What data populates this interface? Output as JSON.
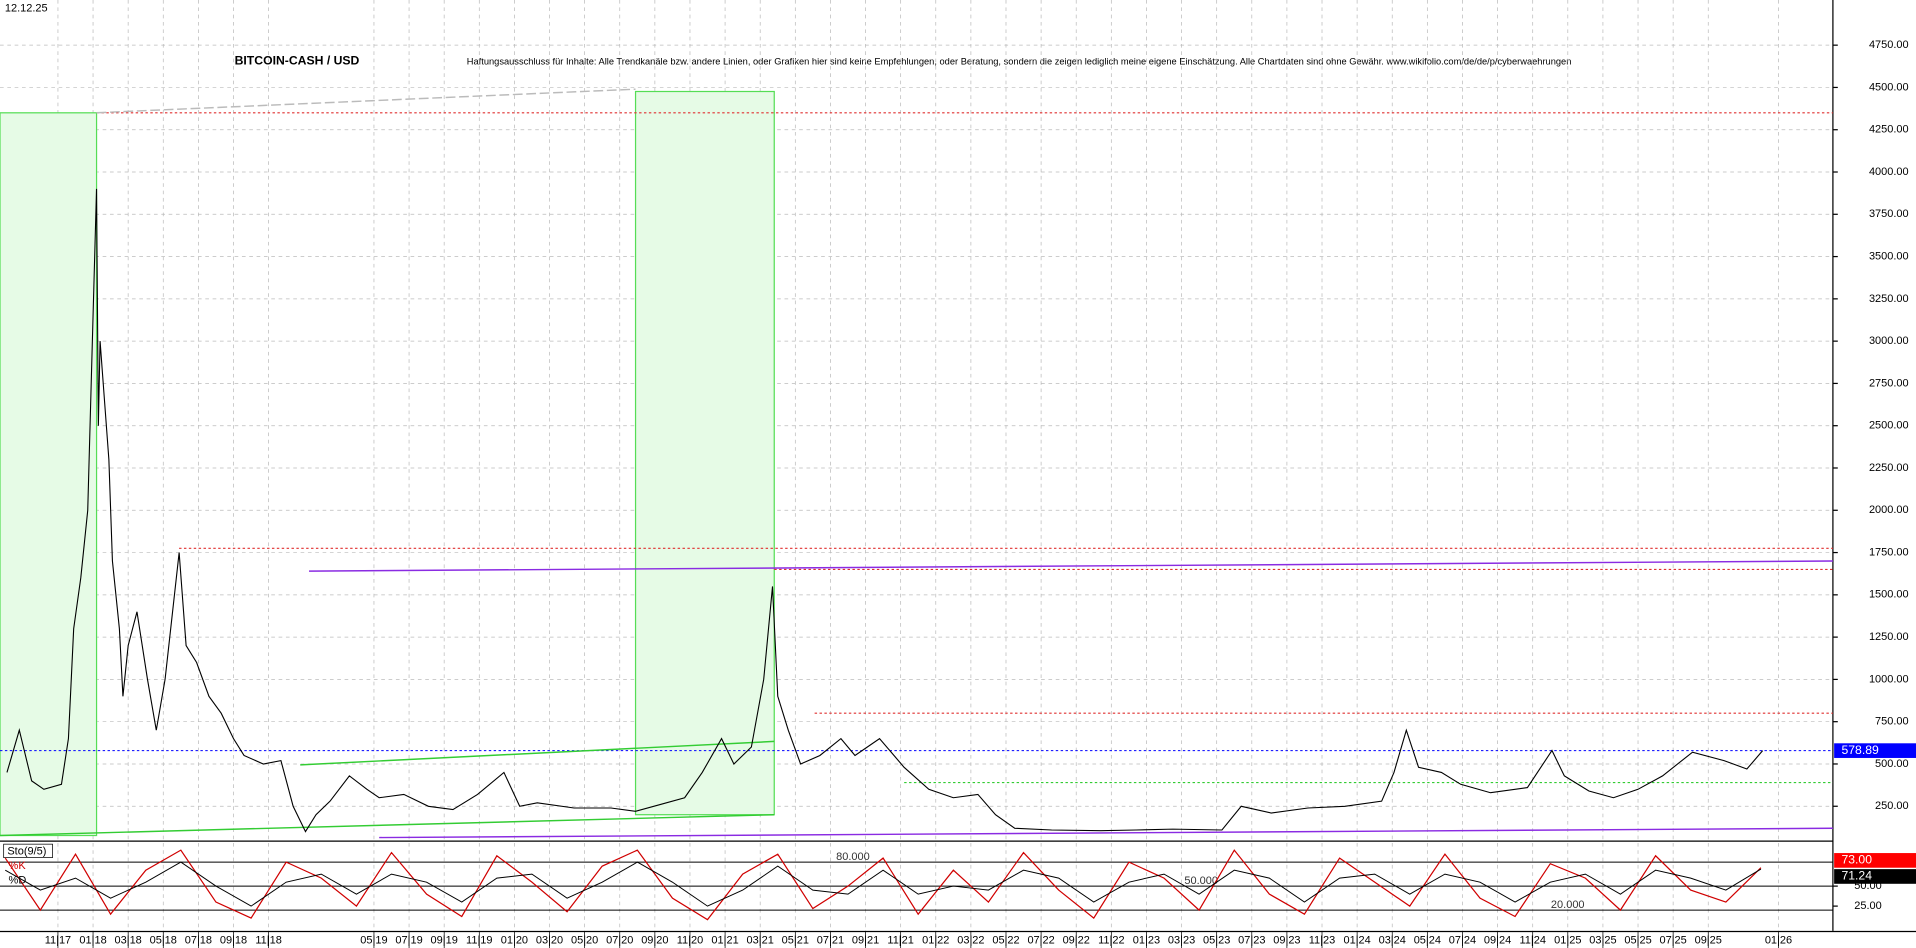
{
  "chart_data": [
    {
      "type": "line",
      "title": "BITCOIN-CASH / USD",
      "date": "12.12.25",
      "subtitle": "Haftungsausschluss für Inhalte: Alle Trendkanäle bzw. andere Linien, oder Grafiken hier sind keine Empfehlungen, oder Beratung, sondern die zeigen lediglich meine eigene Einschätzung. Alle Chartdaten sind ohne Gewähr. www.wikifolio.com/de/de/p/cyberwaehrungen",
      "x": [
        -2.9,
        -2.2,
        -1.5,
        -0.8,
        0.2,
        0.6,
        0.9,
        1.3,
        1.7,
        2.2,
        2.3,
        2.4,
        2.9,
        3.1,
        3.5,
        3.7,
        4.0,
        4.5,
        5.1,
        5.6,
        6.1,
        6.9,
        7.3,
        7.9,
        8.6,
        9.3,
        10.0,
        10.6,
        11.7,
        12.7,
        13.4,
        14.1,
        14.7,
        15.5,
        16.6,
        17.6,
        18.3,
        19.7,
        21.1,
        22.5,
        23.9,
        25.4,
        26.3,
        27.3,
        29.4,
        31.5,
        32.9,
        34.3,
        35.7,
        36.7,
        37.8,
        38.5,
        39.5,
        40.2,
        40.7,
        41.0,
        41.6,
        42.3,
        43.4,
        44.6,
        45.4,
        46.8,
        48.2,
        49.6,
        51.0,
        52.4,
        53.4,
        54.5,
        56.6,
        59.4,
        61.4,
        63.5,
        66.3,
        67.4,
        69.1,
        71.2,
        73.3,
        75.4,
        76.1,
        76.8,
        77.5,
        78.8,
        79.9,
        81.6,
        83.7,
        85.1,
        85.8,
        87.2,
        88.6,
        90.0,
        91.4,
        93.1,
        94.9,
        96.2,
        97.1
      ],
      "values": [
        450,
        700,
        400,
        350,
        380,
        650,
        1300,
        1600,
        2000,
        3900,
        2500,
        3000,
        2300,
        1700,
        1300,
        900,
        1200,
        1400,
        1000,
        700,
        1000,
        1750,
        1200,
        1100,
        900,
        800,
        650,
        550,
        500,
        520,
        250,
        100,
        200,
        280,
        430,
        350,
        300,
        320,
        250,
        230,
        320,
        450,
        250,
        270,
        240,
        240,
        220,
        260,
        300,
        450,
        650,
        500,
        600,
        1000,
        1550,
        900,
        700,
        500,
        550,
        650,
        550,
        650,
        480,
        350,
        300,
        320,
        200,
        120,
        110,
        105,
        110,
        115,
        110,
        250,
        210,
        240,
        250,
        280,
        450,
        700,
        480,
        450,
        380,
        330,
        360,
        580,
        430,
        340,
        300,
        350,
        430,
        570,
        520,
        470,
        578.89
      ],
      "color": "#000000",
      "last_value": 578.89,
      "last_color": "#0000ff",
      "xlim": [
        -3.3,
        101.1
      ],
      "xticks": [
        {
          "value": 0,
          "label": "11|17"
        },
        {
          "value": 2,
          "label": "01|18"
        },
        {
          "value": 4,
          "label": "03|18"
        },
        {
          "value": 6,
          "label": "05|18"
        },
        {
          "value": 8,
          "label": "07|18"
        },
        {
          "value": 10,
          "label": "09|18"
        },
        {
          "value": 12,
          "label": "11|18"
        },
        {
          "value": 18,
          "label": "05|19"
        },
        {
          "value": 20,
          "label": "07|19"
        },
        {
          "value": 22,
          "label": "09|19"
        },
        {
          "value": 24,
          "label": "11|19"
        },
        {
          "value": 26,
          "label": "01|20"
        },
        {
          "value": 28,
          "label": "03|20"
        },
        {
          "value": 30,
          "label": "05|20"
        },
        {
          "value": 32,
          "label": "07|20"
        },
        {
          "value": 34,
          "label": "09|20"
        },
        {
          "value": 36,
          "label": "11|20"
        },
        {
          "value": 38,
          "label": "01|21"
        },
        {
          "value": 40,
          "label": "03|21"
        },
        {
          "value": 42,
          "label": "05|21"
        },
        {
          "value": 44,
          "label": "07|21"
        },
        {
          "value": 46,
          "label": "09|21"
        },
        {
          "value": 48,
          "label": "11|21"
        },
        {
          "value": 50,
          "label": "01|22"
        },
        {
          "value": 52,
          "label": "03|22"
        },
        {
          "value": 54,
          "label": "05|22"
        },
        {
          "value": 56,
          "label": "07|22"
        },
        {
          "value": 58,
          "label": "09|22"
        },
        {
          "value": 60,
          "label": "11|22"
        },
        {
          "value": 62,
          "label": "01|23"
        },
        {
          "value": 64,
          "label": "03|23"
        },
        {
          "value": 66,
          "label": "05|23"
        },
        {
          "value": 68,
          "label": "07|23"
        },
        {
          "value": 70,
          "label": "09|23"
        },
        {
          "value": 72,
          "label": "11|23"
        },
        {
          "value": 74,
          "label": "01|24"
        },
        {
          "value": 76,
          "label": "03|24"
        },
        {
          "value": 78,
          "label": "05|24"
        },
        {
          "value": 80,
          "label": "07|24"
        },
        {
          "value": 82,
          "label": "09|24"
        },
        {
          "value": 84,
          "label": "11|24"
        },
        {
          "value": 86,
          "label": "01|25"
        },
        {
          "value": 88,
          "label": "03|25"
        },
        {
          "value": 90,
          "label": "05|25"
        },
        {
          "value": 92,
          "label": "07|25"
        },
        {
          "value": 94,
          "label": "09|25"
        },
        {
          "value": 98,
          "label": "01|26"
        }
      ],
      "ylim": [
        62,
        5017
      ],
      "yticks": [
        {
          "value": 250,
          "label": "250.00"
        },
        {
          "value": 500,
          "label": "500.00"
        },
        {
          "value": 750,
          "label": "750.00"
        },
        {
          "value": 1000,
          "label": "1000.00"
        },
        {
          "value": 1250,
          "label": "1250.00"
        },
        {
          "value": 1500,
          "label": "1500.00"
        },
        {
          "value": 1750,
          "label": "1750.00"
        },
        {
          "value": 2000,
          "label": "2000.00"
        },
        {
          "value": 2250,
          "label": "2250.00"
        },
        {
          "value": 2500,
          "label": "2500.00"
        },
        {
          "value": 2750,
          "label": "2750.00"
        },
        {
          "value": 3000,
          "label": "3000.00"
        },
        {
          "value": 3250,
          "label": "3250.00"
        },
        {
          "value": 3500,
          "label": "3500.00"
        },
        {
          "value": 3750,
          "label": "3750.00"
        },
        {
          "value": 4000,
          "label": "4000.00"
        },
        {
          "value": 4250,
          "label": "4250.00"
        },
        {
          "value": 4500,
          "label": "4500.00"
        },
        {
          "value": 4750,
          "label": "4750.00"
        }
      ],
      "grid": true,
      "zones": [
        {
          "x": [
            -3.3,
            2.2
          ],
          "values": [
            77,
            4350
          ]
        },
        {
          "x": [
            32.9,
            40.8
          ],
          "values": [
            200,
            4476
          ]
        }
      ],
      "trendlines": [
        {
          "x": [
            14.3,
            101.1
          ],
          "values": [
            1640,
            1700
          ],
          "color": "#8a2be2"
        },
        {
          "x": [
            18.3,
            101.1
          ],
          "values": [
            65,
            120
          ],
          "color": "#8a2be2"
        },
        {
          "x": [
            13.8,
            40.8
          ],
          "values": [
            495,
            633
          ],
          "color": "#33cc33"
        },
        {
          "x": [
            -3.3,
            40.8
          ],
          "values": [
            77,
            200
          ],
          "color": "#33cc33"
        },
        {
          "x": [
            2.2,
            32.9
          ],
          "values": [
            4350,
            4490
          ],
          "color": "#bbbbbb"
        }
      ],
      "levels": [
        {
          "value": 4350,
          "color": "#e03030",
          "from": 2.2
        },
        {
          "value": 1775,
          "color": "#e03030",
          "from": 6.9
        },
        {
          "value": 1650,
          "color": "#e03030",
          "from": 40.8
        },
        {
          "value": 800,
          "color": "#e03030",
          "from": 43.1
        },
        {
          "value": 578.89,
          "color": "#0000ff",
          "from": -3.3
        },
        {
          "value": 390,
          "color": "#33cc33",
          "from": 48.2
        }
      ]
    },
    {
      "type": "line",
      "title": "Sto(9/5)",
      "x": [
        -3,
        -1,
        1,
        3,
        5,
        7,
        9,
        11,
        13,
        15,
        17,
        19,
        21,
        23,
        25,
        27,
        29,
        31,
        33,
        35,
        37,
        39,
        41,
        43,
        45,
        47,
        49,
        51,
        53,
        55,
        57,
        59,
        61,
        63,
        65,
        67,
        69,
        71,
        73,
        75,
        77,
        79,
        81,
        83,
        85,
        87,
        89,
        91,
        93,
        95,
        97
      ],
      "series": [
        {
          "name": "%K",
          "color": "#d00000",
          "last_label": "73.00",
          "values": [
            85,
            20,
            90,
            15,
            70,
            95,
            30,
            10,
            80,
            60,
            25,
            92,
            40,
            12,
            88,
            55,
            18,
            75,
            95,
            35,
            8,
            65,
            90,
            22,
            50,
            85,
            15,
            70,
            30,
            92,
            45,
            10,
            80,
            60,
            20,
            95,
            40,
            15,
            85,
            55,
            25,
            90,
            35,
            12,
            78,
            60,
            20,
            88,
            45,
            30,
            73
          ]
        },
        {
          "name": "%D",
          "color": "#000000",
          "last_label": "71.24",
          "values": [
            70,
            45,
            60,
            35,
            55,
            80,
            50,
            25,
            55,
            65,
            40,
            65,
            55,
            30,
            60,
            65,
            35,
            55,
            80,
            55,
            25,
            45,
            75,
            45,
            40,
            70,
            40,
            50,
            45,
            70,
            60,
            30,
            55,
            65,
            40,
            70,
            60,
            30,
            60,
            65,
            40,
            65,
            55,
            30,
            55,
            65,
            40,
            70,
            60,
            45,
            71.24
          ]
        }
      ],
      "xlim": [
        -3.3,
        101.1
      ],
      "ylim": [
        -6,
        104
      ],
      "yticks": [
        {
          "value": 25,
          "label": "25.00"
        },
        {
          "value": 50,
          "label": "50.00"
        }
      ],
      "levels": [
        {
          "value": 80,
          "label": "80.000"
        },
        {
          "value": 50,
          "label": "50.000"
        },
        {
          "value": 20,
          "label": "20.000"
        }
      ]
    }
  ]
}
